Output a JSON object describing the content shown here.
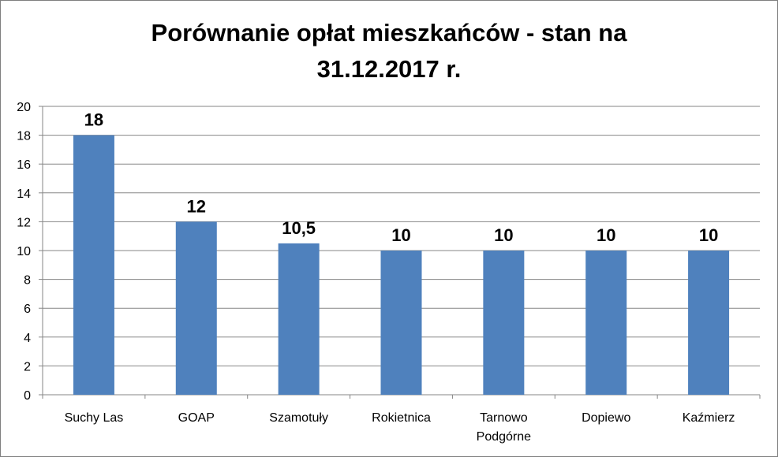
{
  "chart_data": {
    "type": "bar",
    "title_lines": [
      "Porównanie opłat mieszkańców - stan na",
      "31.12.2017 r."
    ],
    "categories": [
      [
        "Suchy Las"
      ],
      [
        "GOAP"
      ],
      [
        "Szamotuły"
      ],
      [
        "Rokietnica"
      ],
      [
        "Tarnowo",
        "Podgórne"
      ],
      [
        "Dopiewo"
      ],
      [
        "Kaźmierz"
      ]
    ],
    "values": [
      18,
      12,
      10.5,
      10,
      10,
      10,
      10
    ],
    "value_labels": [
      "18",
      "12",
      "10,5",
      "10",
      "10",
      "10",
      "10"
    ],
    "ylim": [
      0,
      20
    ],
    "yticks": [
      0,
      2,
      4,
      6,
      8,
      10,
      12,
      14,
      16,
      18,
      20
    ],
    "grid": true,
    "bar_color": "#4f81bd",
    "grid_color": "#868686"
  }
}
